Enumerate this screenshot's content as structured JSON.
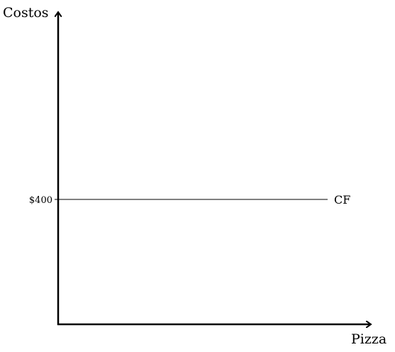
{
  "chart_data": {
    "type": "line",
    "title": "",
    "xlabel": "Pizza",
    "ylabel": "Costos",
    "ylim": [
      0,
      1000
    ],
    "xlim": [
      0,
      10
    ],
    "grid": false,
    "yticks": [
      {
        "value": 400,
        "label": "$400"
      }
    ],
    "series": [
      {
        "name": "CF",
        "x": [
          0,
          10
        ],
        "values": [
          400,
          400
        ]
      }
    ]
  }
}
